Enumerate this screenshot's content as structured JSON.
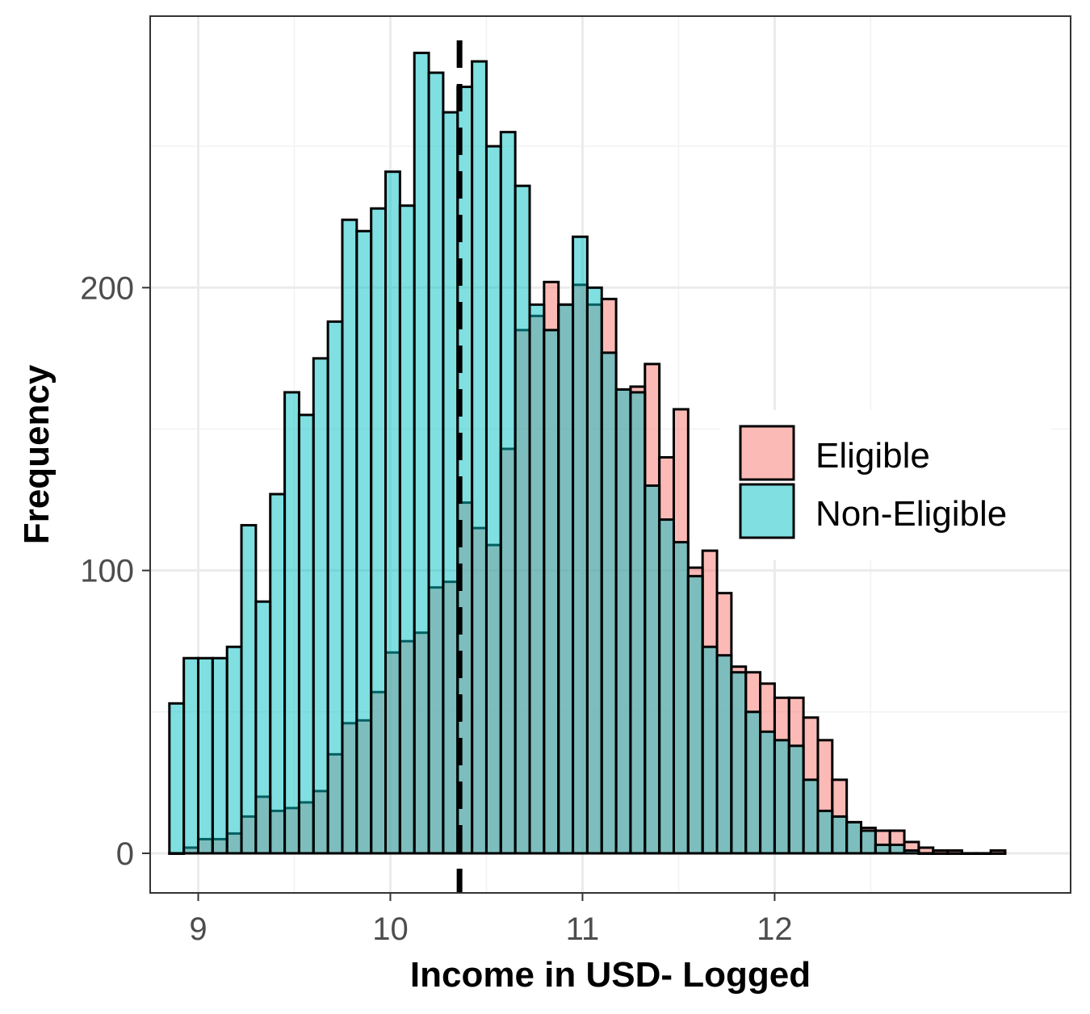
{
  "chart_data": {
    "type": "bar",
    "subtype": "overlaid-histogram",
    "title": "",
    "xlabel": "Income in USD- Logged",
    "ylabel": "Frequency",
    "xlim": [
      8.75,
      12.75
    ],
    "ylim": [
      -14,
      296
    ],
    "x_ticks": [
      9,
      10,
      11,
      12
    ],
    "y_ticks": [
      0,
      100,
      200
    ],
    "x_tick_labels": [
      "9",
      "10",
      "11",
      "12"
    ],
    "y_tick_labels": [
      "0",
      "100",
      "200"
    ],
    "grid": true,
    "legend_position": "right",
    "bin_width": 0.075,
    "bin_start": 8.85,
    "reference_line": {
      "x": 10.36,
      "style": "dashed"
    },
    "series": [
      {
        "name": "Eligible",
        "color": "#f8766d",
        "values": [
          0,
          2,
          5,
          5,
          7,
          13,
          20,
          15,
          16,
          18,
          22,
          35,
          46,
          47,
          57,
          71,
          75,
          78,
          94,
          96,
          124,
          115,
          109,
          143,
          185,
          190,
          202,
          194,
          201,
          194,
          196,
          164,
          165,
          173,
          140,
          157,
          101,
          107,
          92,
          66,
          64,
          60,
          55,
          55,
          48,
          40,
          26,
          11,
          9,
          8,
          8,
          4,
          2,
          1,
          1,
          0,
          0,
          1
        ]
      },
      {
        "name": "Non-Eligible",
        "color": "#00bfc4",
        "values": [
          53,
          69,
          69,
          69,
          73,
          116,
          89,
          127,
          163,
          155,
          175,
          188,
          224,
          220,
          228,
          241,
          229,
          283,
          276,
          262,
          271,
          280,
          250,
          255,
          236,
          194,
          185,
          194,
          218,
          200,
          177,
          164,
          163,
          130,
          118,
          110,
          98,
          73,
          70,
          64,
          50,
          43,
          40,
          38,
          26,
          15,
          13,
          11,
          8,
          3,
          3,
          1,
          0,
          0,
          0,
          0,
          0,
          0
        ]
      }
    ]
  }
}
